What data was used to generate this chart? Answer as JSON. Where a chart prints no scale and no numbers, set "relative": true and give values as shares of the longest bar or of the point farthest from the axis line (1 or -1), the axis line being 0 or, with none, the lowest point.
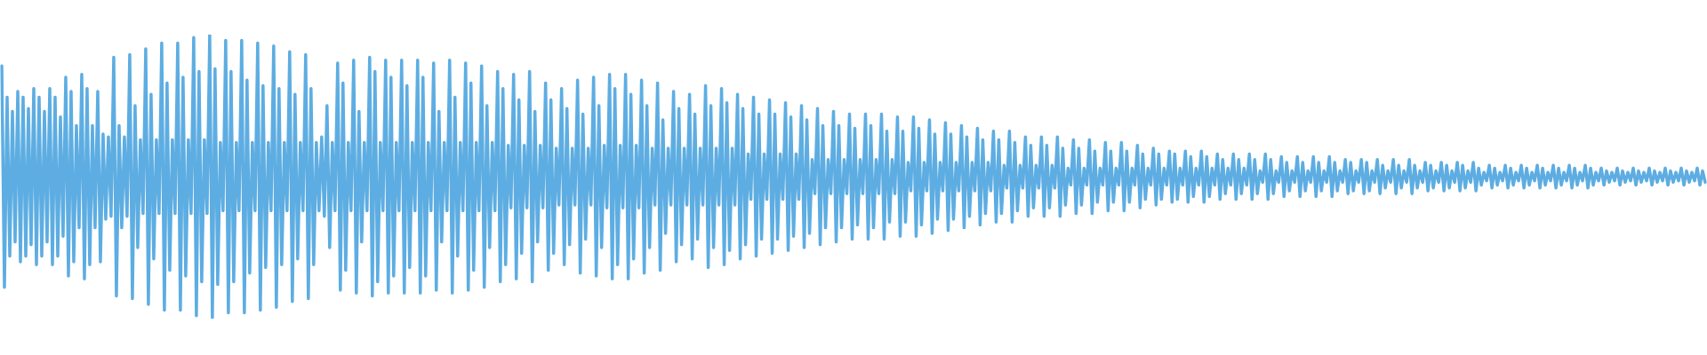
{
  "chart_data": {
    "type": "line",
    "relative": true,
    "color": "#5dade2",
    "categories": [
      null,
      null,
      null,
      null,
      null,
      null,
      null,
      null,
      null,
      null,
      null,
      null,
      null,
      null,
      null,
      null,
      null,
      null,
      null,
      null,
      null,
      null,
      null,
      null,
      null,
      null,
      null,
      null,
      null,
      null,
      null,
      null,
      null,
      null,
      null,
      null,
      null,
      null,
      null,
      null,
      null,
      null,
      null,
      null,
      null,
      null,
      null,
      null,
      null,
      null,
      null,
      null,
      null,
      null,
      null,
      null,
      null,
      null,
      null,
      null,
      null,
      null,
      null,
      null,
      null,
      null,
      null,
      null,
      null,
      null,
      null,
      null,
      null,
      null,
      null,
      null,
      null,
      null,
      null,
      null,
      null,
      null,
      null,
      null,
      null,
      null,
      null,
      null,
      null,
      null,
      null,
      null,
      null,
      null,
      null,
      null,
      null,
      null,
      null,
      null,
      null,
      null,
      null,
      null,
      null,
      null,
      null,
      null,
      null,
      null,
      null,
      null,
      null,
      null,
      null,
      null,
      null,
      null,
      null,
      null,
      null,
      null,
      null,
      null,
      null,
      null,
      null,
      null,
      null,
      null,
      null,
      null,
      null,
      null,
      null,
      null,
      null,
      null,
      null,
      null,
      null,
      null,
      null,
      null,
      null,
      null,
      null,
      null,
      null,
      null,
      null,
      null,
      null,
      null,
      null,
      null,
      null,
      null,
      null,
      null,
      null,
      null,
      null,
      null,
      null,
      null,
      null,
      null,
      null,
      null,
      null,
      null,
      null,
      null,
      null,
      null,
      null,
      null,
      null,
      null,
      null,
      null,
      null,
      null,
      null,
      null,
      null,
      null,
      null,
      null,
      null,
      null,
      null,
      null,
      null,
      null,
      null,
      null,
      null,
      null,
      null,
      null,
      null,
      null,
      null,
      null,
      null,
      null,
      null,
      null,
      null,
      null,
      null,
      null,
      null,
      null,
      null,
      null,
      null,
      null,
      null,
      null,
      null,
      null,
      null,
      null,
      null,
      null,
      null,
      null,
      null,
      null,
      null,
      null,
      null,
      null,
      null,
      null,
      null,
      null,
      null,
      null,
      null,
      null,
      null,
      null,
      null,
      null,
      null,
      null,
      null,
      null,
      null,
      null,
      null,
      null,
      null,
      null,
      null,
      null,
      null,
      null,
      null,
      null,
      null,
      null,
      null,
      null,
      null,
      null,
      null,
      null,
      null,
      null,
      null,
      null,
      null,
      null,
      null,
      null,
      null,
      null,
      null,
      null,
      null,
      null,
      null,
      null,
      null,
      null,
      null,
      null,
      null,
      null,
      null,
      null,
      null,
      null,
      null,
      null,
      null,
      null,
      null,
      null,
      null,
      null,
      null,
      null,
      null,
      null,
      null,
      null,
      null,
      null,
      null,
      null,
      null,
      null,
      null,
      null,
      null,
      null,
      null,
      null,
      null,
      null,
      null,
      null,
      null,
      null,
      null,
      null,
      null,
      null,
      null,
      null,
      null,
      null,
      null,
      null,
      null,
      null,
      null,
      null,
      null,
      null,
      null,
      null,
      null,
      null,
      null,
      null,
      null,
      null,
      null,
      null,
      null,
      null,
      null,
      null,
      null,
      null,
      null,
      null,
      null,
      null,
      null,
      null,
      null,
      null,
      null,
      null,
      null,
      null,
      null,
      null,
      null,
      null,
      null,
      null,
      null,
      null,
      null,
      null,
      null,
      null,
      null,
      null,
      null,
      null,
      null,
      null,
      null,
      null,
      null,
      null,
      null,
      null,
      null,
      null,
      null,
      null,
      null,
      null,
      null,
      null,
      null,
      null,
      null,
      null,
      null,
      null,
      null,
      null,
      null,
      null,
      null,
      null,
      null,
      null,
      null,
      null,
      null,
      null,
      null,
      null,
      null,
      null,
      null,
      null,
      null,
      null,
      null,
      null,
      null,
      null,
      null,
      null,
      null,
      null,
      null,
      null,
      null,
      null,
      null,
      null,
      null,
      null,
      null,
      null,
      null,
      null,
      null,
      null,
      null,
      null,
      null,
      null,
      null,
      null,
      null,
      null,
      null,
      null,
      null,
      null,
      null,
      null,
      null,
      null,
      null,
      null,
      null,
      null,
      null,
      null,
      null,
      null,
      null,
      null,
      null,
      null,
      null,
      null,
      null,
      null,
      null,
      null,
      null,
      null,
      null,
      null,
      null,
      null,
      null,
      null,
      null,
      null,
      null,
      null,
      null,
      null,
      null,
      null,
      null,
      null,
      null,
      null,
      null,
      null,
      null,
      null,
      null,
      null,
      null,
      null,
      null,
      null,
      null,
      null,
      null,
      null,
      null,
      null,
      null,
      null,
      null,
      null,
      null,
      null,
      null,
      null,
      null,
      null,
      null,
      null,
      null,
      null,
      null,
      null,
      null,
      null,
      null,
      null,
      null,
      null,
      null,
      null,
      null,
      null,
      null,
      null,
      null,
      null,
      null,
      null,
      null,
      null,
      null,
      null,
      null,
      null,
      null,
      null,
      null,
      null,
      null,
      null,
      null,
      null,
      null,
      null,
      null,
      null,
      null,
      null,
      null,
      null,
      null,
      null,
      null,
      null,
      null,
      null,
      null,
      null,
      null,
      null,
      null,
      null,
      null,
      null,
      null,
      null,
      null,
      null,
      null,
      null,
      null,
      null,
      null,
      null,
      null,
      null,
      null,
      null,
      null,
      null,
      null,
      null,
      null,
      null,
      null,
      null,
      null,
      null,
      null,
      null,
      null,
      null,
      null,
      null,
      null,
      null,
      null,
      null,
      null,
      null,
      null,
      null,
      null,
      null,
      null,
      null,
      null,
      null,
      null,
      null,
      null,
      null
    ],
    "values": [
      0.89,
      0.11,
      0.78,
      0.22,
      0.73,
      0.27,
      0.8,
      0.2,
      0.78,
      0.22,
      0.74,
      0.26,
      0.81,
      0.19,
      0.78,
      0.22,
      0.73,
      0.27,
      0.81,
      0.19,
      0.78,
      0.22,
      0.71,
      0.29,
      0.85,
      0.15,
      0.8,
      0.2,
      0.68,
      0.32,
      0.86,
      0.14,
      0.81,
      0.19,
      0.68,
      0.32,
      0.8,
      0.2,
      0.65,
      0.35,
      0.64,
      0.36,
      0.92,
      0.08,
      0.68,
      0.32,
      0.64,
      0.36,
      0.93,
      0.07,
      0.75,
      0.25,
      0.63,
      0.37,
      0.95,
      0.05,
      0.79,
      0.21,
      0.63,
      0.37,
      0.97,
      0.03,
      0.83,
      0.17,
      0.63,
      0.37,
      0.97,
      0.03,
      0.85,
      0.15,
      0.63,
      0.37,
      0.99,
      0.01,
      0.87,
      0.13,
      0.63,
      0.37,
      1,
      0,
      0.88,
      0.12,
      0.62,
      0.38,
      0.98,
      0.02,
      0.87,
      0.13,
      0.62,
      0.38,
      0.98,
      0.02,
      0.84,
      0.16,
      0.62,
      0.38,
      0.97,
      0.03,
      0.82,
      0.18,
      0.62,
      0.38,
      0.96,
      0.04,
      0.81,
      0.19,
      0.62,
      0.38,
      0.94,
      0.06,
      0.79,
      0.21,
      0.62,
      0.38,
      0.93,
      0.07,
      0.81,
      0.19,
      0.62,
      0.38,
      0.64,
      0.36,
      0.75,
      0.25,
      0.62,
      0.38,
      0.9,
      0.1,
      0.83,
      0.17,
      0.62,
      0.38,
      0.91,
      0.09,
      0.73,
      0.27,
      0.62,
      0.38,
      0.92,
      0.08,
      0.87,
      0.13,
      0.62,
      0.38,
      0.91,
      0.09,
      0.85,
      0.15,
      0.62,
      0.38,
      0.91,
      0.09,
      0.82,
      0.18,
      0.62,
      0.38,
      0.91,
      0.09,
      0.85,
      0.15,
      0.62,
      0.38,
      0.9,
      0.1,
      0.73,
      0.27,
      0.62,
      0.38,
      0.91,
      0.09,
      0.78,
      0.22,
      0.62,
      0.38,
      0.9,
      0.1,
      0.83,
      0.17,
      0.62,
      0.38,
      0.89,
      0.11,
      0.75,
      0.25,
      0.62,
      0.38,
      0.87,
      0.13,
      0.81,
      0.19,
      0.61,
      0.39,
      0.86,
      0.14,
      0.77,
      0.23,
      0.61,
      0.39,
      0.87,
      0.13,
      0.73,
      0.27,
      0.61,
      0.39,
      0.83,
      0.17,
      0.77,
      0.23,
      0.6,
      0.4,
      0.81,
      0.19,
      0.74,
      0.26,
      0.6,
      0.4,
      0.84,
      0.16,
      0.72,
      0.28,
      0.6,
      0.4,
      0.85,
      0.15,
      0.75,
      0.25,
      0.61,
      0.39,
      0.86,
      0.14,
      0.81,
      0.19,
      0.61,
      0.39,
      0.86,
      0.14,
      0.79,
      0.21,
      0.61,
      0.39,
      0.84,
      0.16,
      0.75,
      0.25,
      0.6,
      0.4,
      0.83,
      0.17,
      0.7,
      0.3,
      0.6,
      0.4,
      0.8,
      0.2,
      0.74,
      0.26,
      0.6,
      0.4,
      0.79,
      0.21,
      0.72,
      0.28,
      0.6,
      0.4,
      0.82,
      0.18,
      0.75,
      0.25,
      0.6,
      0.4,
      0.81,
      0.19,
      0.76,
      0.24,
      0.6,
      0.4,
      0.79,
      0.21,
      0.74,
      0.26,
      0.58,
      0.42,
      0.78,
      0.22,
      0.72,
      0.28,
      0.58,
      0.42,
      0.77,
      0.23,
      0.72,
      0.28,
      0.58,
      0.42,
      0.76,
      0.24,
      0.71,
      0.29,
      0.58,
      0.42,
      0.75,
      0.25,
      0.7,
      0.3,
      0.56,
      0.44,
      0.74,
      0.26,
      0.68,
      0.32,
      0.56,
      0.44,
      0.73,
      0.27,
      0.68,
      0.32,
      0.56,
      0.44,
      0.72,
      0.28,
      0.67,
      0.33,
      0.56,
      0.44,
      0.72,
      0.28,
      0.68,
      0.32,
      0.56,
      0.44,
      0.72,
      0.28,
      0.66,
      0.34,
      0.56,
      0.44,
      0.71,
      0.29,
      0.66,
      0.34,
      0.55,
      0.45,
      0.71,
      0.29,
      0.67,
      0.33,
      0.55,
      0.45,
      0.7,
      0.3,
      0.65,
      0.35,
      0.55,
      0.45,
      0.69,
      0.31,
      0.65,
      0.35,
      0.55,
      0.45,
      0.68,
      0.32,
      0.64,
      0.36,
      0.55,
      0.45,
      0.67,
      0.33,
      0.63,
      0.37,
      0.55,
      0.45,
      0.66,
      0.34,
      0.63,
      0.37,
      0.54,
      0.46,
      0.66,
      0.34,
      0.62,
      0.38,
      0.54,
      0.46,
      0.64,
      0.36,
      0.61,
      0.39,
      0.54,
      0.46,
      0.64,
      0.36,
      0.61,
      0.39,
      0.54,
      0.46,
      0.64,
      0.36,
      0.6,
      0.4,
      0.53,
      0.47,
      0.63,
      0.37,
      0.6,
      0.4,
      0.53,
      0.47,
      0.63,
      0.37,
      0.59,
      0.41,
      0.53,
      0.47,
      0.62,
      0.38,
      0.59,
      0.41,
      0.53,
      0.47,
      0.62,
      0.38,
      0.59,
      0.41,
      0.53,
      0.47,
      0.61,
      0.39,
      0.58,
      0.42,
      0.53,
      0.47,
      0.6,
      0.4,
      0.58,
      0.42,
      0.53,
      0.47,
      0.59,
      0.41,
      0.58,
      0.42,
      0.53,
      0.47,
      0.59,
      0.41,
      0.57,
      0.43,
      0.53,
      0.47,
      0.59,
      0.41,
      0.57,
      0.43,
      0.53,
      0.47,
      0.58,
      0.42,
      0.56,
      0.44,
      0.53,
      0.47,
      0.58,
      0.42,
      0.56,
      0.44,
      0.53,
      0.47,
      0.58,
      0.42,
      0.56,
      0.44,
      0.52,
      0.48,
      0.58,
      0.42,
      0.56,
      0.44,
      0.52,
      0.48,
      0.57,
      0.43,
      0.55,
      0.45,
      0.52,
      0.48,
      0.57,
      0.43,
      0.55,
      0.45,
      0.52,
      0.48,
      0.57,
      0.43,
      0.55,
      0.45,
      0.52,
      0.48,
      0.57,
      0.43,
      0.55,
      0.45,
      0.52,
      0.48,
      0.56,
      0.44,
      0.55,
      0.45,
      0.52,
      0.48,
      0.56,
      0.44,
      0.55,
      0.45,
      0.52,
      0.48,
      0.56,
      0.44,
      0.54,
      0.46,
      0.52,
      0.48,
      0.56,
      0.44,
      0.54,
      0.46,
      0.52,
      0.48,
      0.56,
      0.44,
      0.54,
      0.46,
      0.52,
      0.48,
      0.55,
      0.45,
      0.54,
      0.46,
      0.52,
      0.48,
      0.55,
      0.45,
      0.54,
      0.46,
      0.52,
      0.48,
      0.55,
      0.45,
      0.54,
      0.46,
      0.52,
      0.48,
      0.55,
      0.45,
      0.53,
      0.47,
      0.515,
      0.485,
      0.54,
      0.46,
      0.53,
      0.47,
      0.515,
      0.485,
      0.54,
      0.46,
      0.53,
      0.47,
      0.515,
      0.485,
      0.54,
      0.46,
      0.53,
      0.47,
      0.515,
      0.485,
      0.54,
      0.46,
      0.53,
      0.47,
      0.515,
      0.485,
      0.54,
      0.46,
      0.53,
      0.47,
      0.515,
      0.485,
      0.54,
      0.46,
      0.53,
      0.47,
      0.515,
      0.485,
      0.54,
      0.46,
      0.53,
      0.47,
      0.515,
      0.485,
      0.53,
      0.47,
      0.52,
      0.48,
      0.515,
      0.485,
      0.53,
      0.47,
      0.52,
      0.48,
      0.515,
      0.485,
      0.53,
      0.47,
      0.52,
      0.48,
      0.515,
      0.485,
      0.53,
      0.47,
      0.52,
      0.48,
      0.515,
      0.485,
      0.53,
      0.47,
      0.52,
      0.48,
      0.515,
      0.485,
      0.53,
      0.47,
      0.52,
      0.48,
      0.515,
      0.485,
      0.53,
      0.47,
      0.52,
      0.48
    ]
  }
}
